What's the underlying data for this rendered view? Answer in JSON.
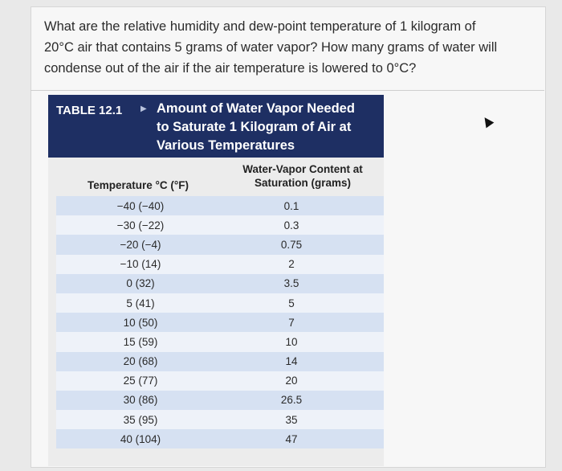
{
  "question": {
    "line1": "What are the relative humidity and dew-point temperature of 1 kilogram of",
    "line2": "20°C air that contains 5 grams of water vapor? How many grams of water will",
    "line3": "condense out of the air if the air temperature is lowered to 0°C?"
  },
  "table": {
    "id": "TABLE 12.1",
    "arrow_icon": "triangle-right",
    "title_line1": "Amount of Water Vapor Needed",
    "title_line2": "to Saturate 1 Kilogram of Air at",
    "title_line3": "Various Temperatures",
    "col1_header": "Temperature °C (°F)",
    "col2_header_line1": "Water-Vapor Content at",
    "col2_header_line2": "Saturation (grams)",
    "rows": [
      {
        "temp": "−40 (−40)",
        "value": "0.1"
      },
      {
        "temp": "−30 (−22)",
        "value": "0.3"
      },
      {
        "temp": "−20 (−4)",
        "value": "0.75"
      },
      {
        "temp": "−10 (14)",
        "value": "2"
      },
      {
        "temp": "0 (32)",
        "value": "3.5"
      },
      {
        "temp": "5 (41)",
        "value": "5"
      },
      {
        "temp": "10 (50)",
        "value": "7"
      },
      {
        "temp": "15 (59)",
        "value": "10"
      },
      {
        "temp": "20 (68)",
        "value": "14"
      },
      {
        "temp": "25 (77)",
        "value": "20"
      },
      {
        "temp": "30 (86)",
        "value": "26.5"
      },
      {
        "temp": "35 (95)",
        "value": "35"
      },
      {
        "temp": "40 (104)",
        "value": "47"
      }
    ]
  },
  "colors": {
    "header_bg": "#1e2f63",
    "row_odd": "#d6e1f2",
    "row_even": "#eef2f9"
  }
}
